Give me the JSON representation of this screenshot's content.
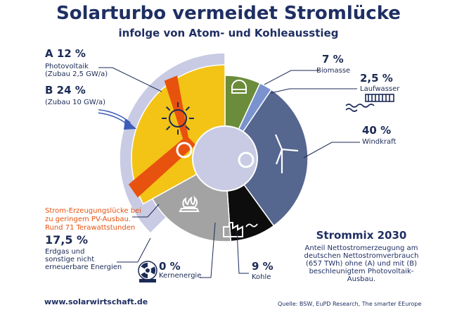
{
  "title": "Solarturbo vermeidet Stromlücke",
  "subtitle": "infolge von Atom- und Kohleausstieg",
  "chart_data": {
    "type": "pie",
    "title": "Strommix 2030",
    "unit": "%",
    "slices": [
      {
        "key": "biomasse",
        "label": "Biomasse",
        "value_label": "7 %",
        "value": 7,
        "color": "#6b8c3a"
      },
      {
        "key": "laufwasser",
        "label": "Laufwasser",
        "value_label": "2,5 %",
        "value": 2.5,
        "color": "#7a93cf"
      },
      {
        "key": "wind",
        "label": "Windkraft",
        "value_label": "40 %",
        "value": 40,
        "color": "#55668f"
      },
      {
        "key": "kohle",
        "label": "Kohle",
        "value_label": "9 %",
        "value": 9,
        "color": "#0d0d0d"
      },
      {
        "key": "kern",
        "label": "Kernenergie",
        "value_label": "0 %",
        "value": 0,
        "color": "#9a9a9a"
      },
      {
        "key": "erdgas",
        "label": "Erdgas und sonstige nicht erneuerbare Energien",
        "value_label": "17,5 %",
        "value": 17.5,
        "color": "#a3a3a3"
      },
      {
        "key": "pv_a",
        "label": "Photovoltaik (Zubau 2,5 GW/a)",
        "value_label": "A 12 %",
        "value": 12,
        "color": "#f3c316"
      },
      {
        "key": "pv_b",
        "label": "(Zubau 10 GW/a)",
        "value_label": "B 24 %",
        "value": 24,
        "color": "#c8cbe3"
      }
    ],
    "gap_color": "#e8520f"
  },
  "labels": {
    "a_value": "A 12 %",
    "a_text1": "Photovoltaik",
    "a_text2": "(Zubau 2,5 GW/a)",
    "b_value": "B 24 %",
    "b_text": "(Zubau 10 GW/a)",
    "bio_value": "7 %",
    "bio_text": "Biomasse",
    "wasser_value": "2,5 %",
    "wasser_text": "Laufwasser",
    "wind_value": "40 %",
    "wind_text": "Windkraft",
    "kohle_value": "9 %",
    "kohle_text": "Kohle",
    "kern_value": "0 %",
    "kern_text": "Kernenergie",
    "gas_value": "17,5 %",
    "gas_text1": "Erdgas und",
    "gas_text2": "sonstige nicht",
    "gas_text3": "erneuerbare Energien",
    "gap_line1": "Strom-Erzeugungslücke bei",
    "gap_line2": "zu geringem PV-Ausbau.",
    "gap_line3": "Rund 71 Terawattstunden"
  },
  "mix": {
    "title": "Strommix 2030",
    "line1": "Anteil Nettostromerzeugung am",
    "line2": "deutschen Nettostromverbrauch",
    "line3": "(657 TWh) ohne (A) und mit (B)",
    "line4": "beschleunigtem Photovoltaik-",
    "line5": "Ausbau."
  },
  "footer": {
    "website": "www.solarwirtschaft.de",
    "source": "Quelle: BSW, EuPD Research, The smarter EEurope"
  },
  "icons": [
    "biomass-dome-icon",
    "water-wave-icon",
    "wind-turbine-icon",
    "factory-icon",
    "gas-flame-icon",
    "radiation-icon",
    "sun-icon",
    "arrow-icon"
  ]
}
